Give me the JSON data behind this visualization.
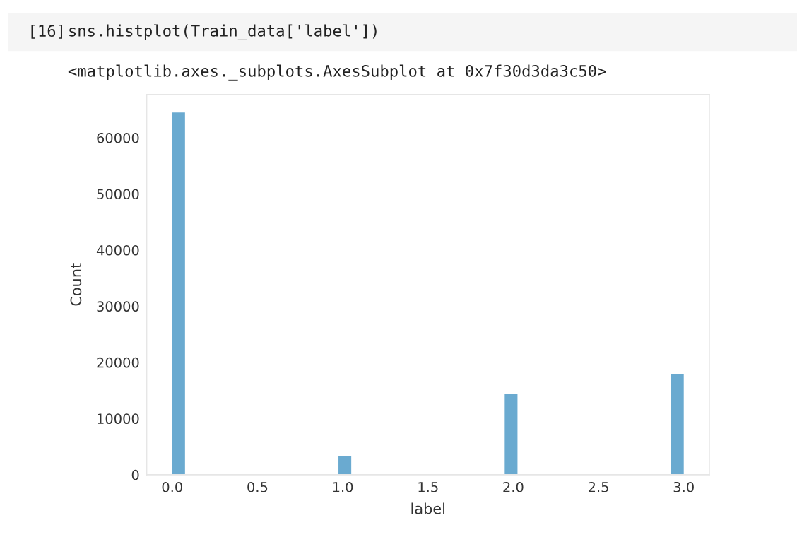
{
  "chart_data": {
    "type": "histogram",
    "xlabel": "label",
    "ylabel": "Count",
    "bins": [
      0,
      0.075,
      0.15,
      0.225,
      0.3,
      0.375,
      0.45,
      0.525,
      0.6,
      0.675,
      0.75,
      0.825,
      0.9,
      0.975,
      1.05,
      1.125,
      1.2,
      1.275,
      1.35,
      1.425,
      1.5,
      1.575,
      1.65,
      1.725,
      1.8,
      1.875,
      1.95,
      2.025,
      2.1,
      2.175,
      2.25,
      2.325,
      2.4,
      2.475,
      2.55,
      2.625,
      2.7,
      2.775,
      2.85,
      2.925,
      3.0
    ],
    "values": [
      64500,
      0,
      0,
      0,
      0,
      0,
      0,
      0,
      0,
      0,
      0,
      0,
      0,
      3300,
      0,
      0,
      0,
      0,
      0,
      0,
      0,
      0,
      0,
      0,
      0,
      0,
      14400,
      0,
      0,
      0,
      0,
      0,
      0,
      0,
      0,
      0,
      0,
      0,
      0,
      17900
    ],
    "color": "#6aaad0",
    "xticks": [
      {
        "value": 0,
        "label": "0.0"
      },
      {
        "value": 0.5,
        "label": "0.5"
      },
      {
        "value": 1,
        "label": "1.0"
      },
      {
        "value": 1.5,
        "label": "1.5"
      },
      {
        "value": 2,
        "label": "2.0"
      },
      {
        "value": 2.5,
        "label": "2.5"
      },
      {
        "value": 3,
        "label": "3.0"
      }
    ],
    "yticks": [
      0,
      10000,
      20000,
      30000,
      40000,
      50000,
      60000
    ],
    "xlim": [
      -0.15,
      3.15
    ],
    "ylim": [
      0,
      67700
    ],
    "grid": false,
    "annotations": [
      "[16]",
      "sns.histplot(Train_data['label'])",
      "<matplotlib.axes._subplots.AxesSubplot at 0x7f30d3da3c50>"
    ]
  }
}
